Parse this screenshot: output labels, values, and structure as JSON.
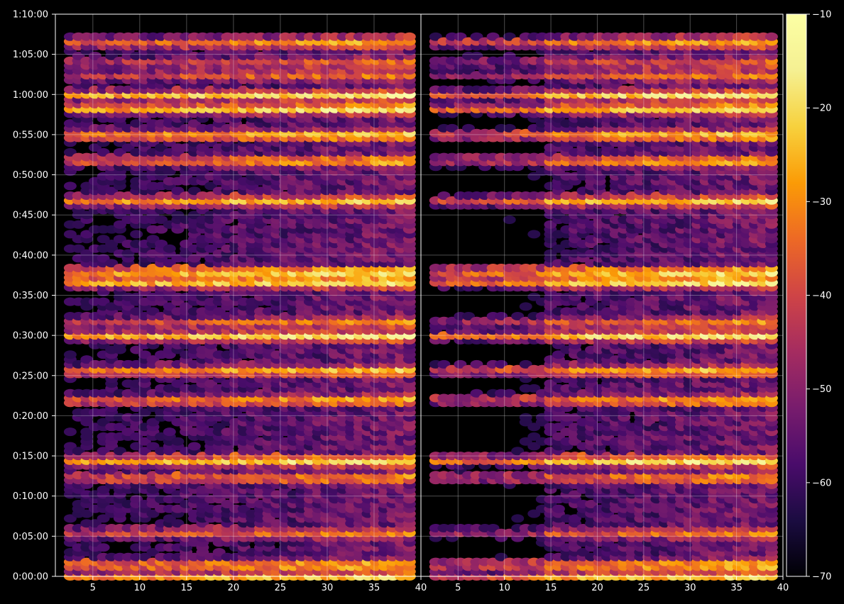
{
  "chart_data": {
    "type": "heatmap",
    "style": "hexbin",
    "colormap": "inferno",
    "background_color": "#000000",
    "grid": true,
    "title": "",
    "xlabel": "",
    "ylabel": "",
    "panels": [
      {
        "name": "",
        "xlim": [
          1,
          40
        ],
        "xticks": [
          5,
          10,
          15,
          20,
          25,
          30,
          35,
          40
        ],
        "xtick_labels": [
          "5",
          "10",
          "15",
          "20",
          "25",
          "30",
          "35",
          "40"
        ]
      },
      {
        "name": "",
        "xlim": [
          1,
          40
        ],
        "xticks": [
          5,
          10,
          15,
          20,
          25,
          30,
          35,
          40
        ],
        "xtick_labels": [
          "5",
          "10",
          "15",
          "20",
          "25",
          "30",
          "35",
          "40"
        ]
      }
    ],
    "y_axis": {
      "unit": "seconds",
      "ylim": [
        0,
        4200
      ],
      "ticks": [
        0,
        300,
        600,
        900,
        1200,
        1500,
        1800,
        2100,
        2400,
        2700,
        3000,
        3300,
        3600,
        3900,
        4200
      ],
      "tick_labels": [
        "0:00:00",
        "0:05:00",
        "0:10:00",
        "0:15:00",
        "0:20:00",
        "0:25:00",
        "0:30:00",
        "0:35:00",
        "0:40:00",
        "0:45:00",
        "0:50:00",
        "0:55:00",
        "1:00:00",
        "1:05:00",
        "1:10:00"
      ]
    },
    "bands": [
      {
        "time": "0:00:00",
        "strength": 0.75
      },
      {
        "time": "0:01:30",
        "strength": 0.85
      },
      {
        "time": "0:05:30",
        "strength": 0.55
      },
      {
        "time": "0:12:20",
        "strength": 0.7
      },
      {
        "time": "0:14:30",
        "strength": 0.95
      },
      {
        "time": "0:22:00",
        "strength": 0.75
      },
      {
        "time": "0:25:40",
        "strength": 0.8
      },
      {
        "time": "0:30:00",
        "strength": 0.85
      },
      {
        "time": "0:31:40",
        "strength": 0.6
      },
      {
        "time": "0:36:40",
        "strength": 0.9
      },
      {
        "time": "0:38:00",
        "strength": 1.0
      },
      {
        "time": "0:46:50",
        "strength": 0.8
      },
      {
        "time": "0:51:50",
        "strength": 0.75
      },
      {
        "time": "0:55:00",
        "strength": 0.85
      },
      {
        "time": "0:58:20",
        "strength": 0.95
      },
      {
        "time": "1:00:00",
        "strength": 0.85
      },
      {
        "time": "1:02:30",
        "strength": 0.55
      },
      {
        "time": "1:04:00",
        "strength": 0.5
      },
      {
        "time": "1:06:30",
        "strength": 0.7
      }
    ],
    "colorbar": {
      "vmin": -70,
      "vmax": -10,
      "ticks": [
        -70,
        -60,
        -50,
        -40,
        -30,
        -20,
        -10
      ],
      "tick_labels": [
        "−70",
        "−60",
        "−50",
        "−40",
        "−30",
        "−20",
        "−10"
      ]
    }
  }
}
